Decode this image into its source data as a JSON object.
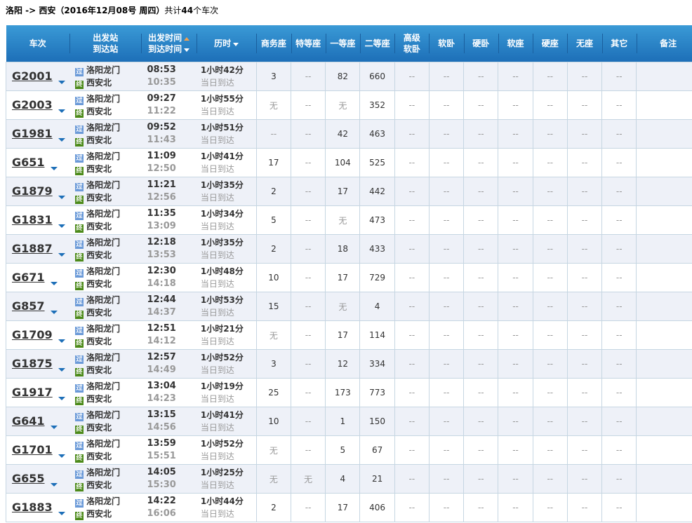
{
  "summary": {
    "route": "洛阳 -> 西安（2016年12月08号  周四）",
    "total_prefix": "共计",
    "total_count": "44",
    "total_suffix": "个车次"
  },
  "headers": {
    "train": "车次",
    "from": "出发站",
    "to": "到达站",
    "dep": "出发时间",
    "arr": "到达时间",
    "duration": "历时",
    "seats": [
      "商务座",
      "特等座",
      "一等座",
      "二等座",
      "高级\n软卧",
      "软卧",
      "硬卧",
      "软座",
      "硬座",
      "无座",
      "其它"
    ],
    "remark": "备注"
  },
  "icons": {
    "pass": "过",
    "end": "终"
  },
  "colors": {
    "header": "#1d6fb8",
    "row_alt": "#eef1f8",
    "pass_icon": "#6b9ad8",
    "end_icon": "#4c8a1a"
  },
  "rows": [
    {
      "train": "G2001",
      "from": "洛阳龙门",
      "to": "西安北",
      "dep": "08:53",
      "arr": "10:35",
      "duration": "1小时42分",
      "arrive": "当日到达",
      "seats": [
        "3",
        "--",
        "82",
        "660",
        "--",
        "--",
        "--",
        "--",
        "--",
        "--",
        "--"
      ]
    },
    {
      "train": "G2003",
      "from": "洛阳龙门",
      "to": "西安北",
      "dep": "09:27",
      "arr": "11:22",
      "duration": "1小时55分",
      "arrive": "当日到达",
      "seats": [
        "无",
        "--",
        "无",
        "352",
        "--",
        "--",
        "--",
        "--",
        "--",
        "--",
        "--"
      ]
    },
    {
      "train": "G1981",
      "from": "洛阳龙门",
      "to": "西安北",
      "dep": "09:52",
      "arr": "11:43",
      "duration": "1小时51分",
      "arrive": "当日到达",
      "seats": [
        "--",
        "--",
        "42",
        "463",
        "--",
        "--",
        "--",
        "--",
        "--",
        "--",
        "--"
      ]
    },
    {
      "train": "G651",
      "from": "洛阳龙门",
      "to": "西安北",
      "dep": "11:09",
      "arr": "12:50",
      "duration": "1小时41分",
      "arrive": "当日到达",
      "seats": [
        "17",
        "--",
        "104",
        "525",
        "--",
        "--",
        "--",
        "--",
        "--",
        "--",
        "--"
      ]
    },
    {
      "train": "G1879",
      "from": "洛阳龙门",
      "to": "西安北",
      "dep": "11:21",
      "arr": "12:56",
      "duration": "1小时35分",
      "arrive": "当日到达",
      "seats": [
        "2",
        "--",
        "17",
        "442",
        "--",
        "--",
        "--",
        "--",
        "--",
        "--",
        "--"
      ]
    },
    {
      "train": "G1831",
      "from": "洛阳龙门",
      "to": "西安北",
      "dep": "11:35",
      "arr": "13:09",
      "duration": "1小时34分",
      "arrive": "当日到达",
      "seats": [
        "5",
        "--",
        "无",
        "473",
        "--",
        "--",
        "--",
        "--",
        "--",
        "--",
        "--"
      ]
    },
    {
      "train": "G1887",
      "from": "洛阳龙门",
      "to": "西安北",
      "dep": "12:18",
      "arr": "13:53",
      "duration": "1小时35分",
      "arrive": "当日到达",
      "seats": [
        "2",
        "--",
        "18",
        "433",
        "--",
        "--",
        "--",
        "--",
        "--",
        "--",
        "--"
      ]
    },
    {
      "train": "G671",
      "from": "洛阳龙门",
      "to": "西安北",
      "dep": "12:30",
      "arr": "14:18",
      "duration": "1小时48分",
      "arrive": "当日到达",
      "seats": [
        "10",
        "--",
        "17",
        "729",
        "--",
        "--",
        "--",
        "--",
        "--",
        "--",
        "--"
      ]
    },
    {
      "train": "G857",
      "from": "洛阳龙门",
      "to": "西安北",
      "dep": "12:44",
      "arr": "14:37",
      "duration": "1小时53分",
      "arrive": "当日到达",
      "seats": [
        "15",
        "--",
        "无",
        "4",
        "--",
        "--",
        "--",
        "--",
        "--",
        "--",
        "--"
      ]
    },
    {
      "train": "G1709",
      "from": "洛阳龙门",
      "to": "西安北",
      "dep": "12:51",
      "arr": "14:12",
      "duration": "1小时21分",
      "arrive": "当日到达",
      "seats": [
        "无",
        "--",
        "17",
        "114",
        "--",
        "--",
        "--",
        "--",
        "--",
        "--",
        "--"
      ]
    },
    {
      "train": "G1875",
      "from": "洛阳龙门",
      "to": "西安北",
      "dep": "12:57",
      "arr": "14:49",
      "duration": "1小时52分",
      "arrive": "当日到达",
      "seats": [
        "3",
        "--",
        "12",
        "334",
        "--",
        "--",
        "--",
        "--",
        "--",
        "--",
        "--"
      ]
    },
    {
      "train": "G1917",
      "from": "洛阳龙门",
      "to": "西安北",
      "dep": "13:04",
      "arr": "14:23",
      "duration": "1小时19分",
      "arrive": "当日到达",
      "seats": [
        "25",
        "--",
        "173",
        "773",
        "--",
        "--",
        "--",
        "--",
        "--",
        "--",
        "--"
      ]
    },
    {
      "train": "G641",
      "from": "洛阳龙门",
      "to": "西安北",
      "dep": "13:15",
      "arr": "14:56",
      "duration": "1小时41分",
      "arrive": "当日到达",
      "seats": [
        "10",
        "--",
        "1",
        "150",
        "--",
        "--",
        "--",
        "--",
        "--",
        "--",
        "--"
      ]
    },
    {
      "train": "G1701",
      "from": "洛阳龙门",
      "to": "西安北",
      "dep": "13:59",
      "arr": "15:51",
      "duration": "1小时52分",
      "arrive": "当日到达",
      "seats": [
        "无",
        "--",
        "5",
        "67",
        "--",
        "--",
        "--",
        "--",
        "--",
        "--",
        "--"
      ]
    },
    {
      "train": "G655",
      "from": "洛阳龙门",
      "to": "西安北",
      "dep": "14:05",
      "arr": "15:30",
      "duration": "1小时25分",
      "arrive": "当日到达",
      "seats": [
        "无",
        "无",
        "4",
        "21",
        "--",
        "--",
        "--",
        "--",
        "--",
        "--",
        "--"
      ]
    },
    {
      "train": "G1883",
      "from": "洛阳龙门",
      "to": "西安北",
      "dep": "14:22",
      "arr": "16:06",
      "duration": "1小时44分",
      "arrive": "当日到达",
      "seats": [
        "2",
        "--",
        "17",
        "406",
        "--",
        "--",
        "--",
        "--",
        "--",
        "--",
        "--"
      ]
    }
  ]
}
